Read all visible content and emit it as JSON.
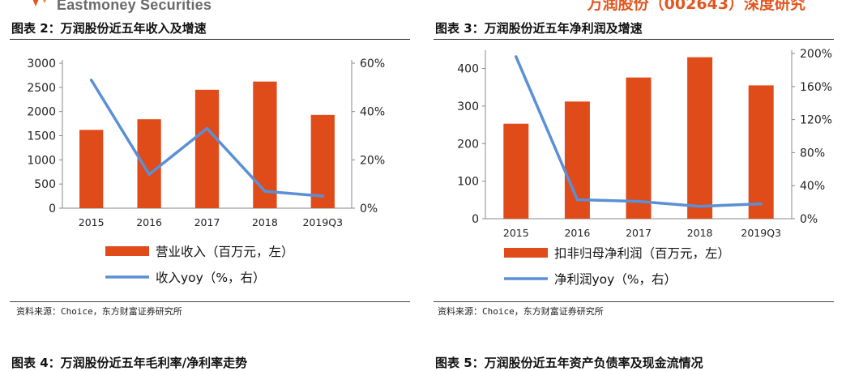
{
  "header": {
    "brand": "Eastmoney Securities",
    "report_tag": "万润股份（002643）深度研究"
  },
  "colors": {
    "bar": "#e04b1a",
    "line": "#5b8fd6",
    "brand": "#e2571f"
  },
  "panels": [
    {
      "title": "图表 2：万润股份近五年收入及增速",
      "source": "资料来源：Choice，东方财富证券研究所"
    },
    {
      "title": "图表 3：万润股份近五年净利润及增速",
      "source": "资料来源：Choice，东方财富证券研究所"
    },
    {
      "title": "图表 4：万润股份近五年毛利率/净利率走势"
    },
    {
      "title": "图表 5：万润股份近五年资产负债率及现金流情况"
    }
  ],
  "chart_data": [
    {
      "type": "bar",
      "categories": [
        "2015",
        "2016",
        "2017",
        "2018",
        "2019Q3"
      ],
      "series": [
        {
          "name": "营业收入（百万元，左）",
          "type": "bar",
          "axis": "left",
          "values": [
            1620,
            1840,
            2450,
            2620,
            1930
          ]
        },
        {
          "name": "收入yoy（%，右）",
          "type": "line",
          "axis": "right",
          "values": [
            53,
            14,
            33,
            7,
            5
          ]
        }
      ],
      "yticks_left": [
        "0",
        "500",
        "1000",
        "1500",
        "2000",
        "2500",
        "3000"
      ],
      "yticks_right": [
        "0%",
        "20%",
        "40%",
        "60%"
      ],
      "ylim_left": [
        0,
        3000
      ],
      "ylim_right": [
        0,
        60
      ],
      "legend_position": "bottom",
      "grid": false
    },
    {
      "type": "bar",
      "categories": [
        "2015",
        "2016",
        "2017",
        "2018",
        "2019Q3"
      ],
      "series": [
        {
          "name": "扣非归母净利润（百万元，左）",
          "type": "bar",
          "axis": "left",
          "values": [
            253,
            312,
            376,
            430,
            355
          ]
        },
        {
          "name": "净利润yoy（%，右）",
          "type": "line",
          "axis": "right",
          "values": [
            196,
            23,
            21,
            15,
            18
          ]
        }
      ],
      "yticks_left": [
        "0",
        "100",
        "200",
        "300",
        "400"
      ],
      "yticks_right": [
        "0%",
        "40%",
        "80%",
        "120%",
        "160%",
        "200%"
      ],
      "ylim_left": [
        0,
        440
      ],
      "ylim_right": [
        0,
        200
      ],
      "legend_position": "bottom",
      "grid": false
    }
  ]
}
